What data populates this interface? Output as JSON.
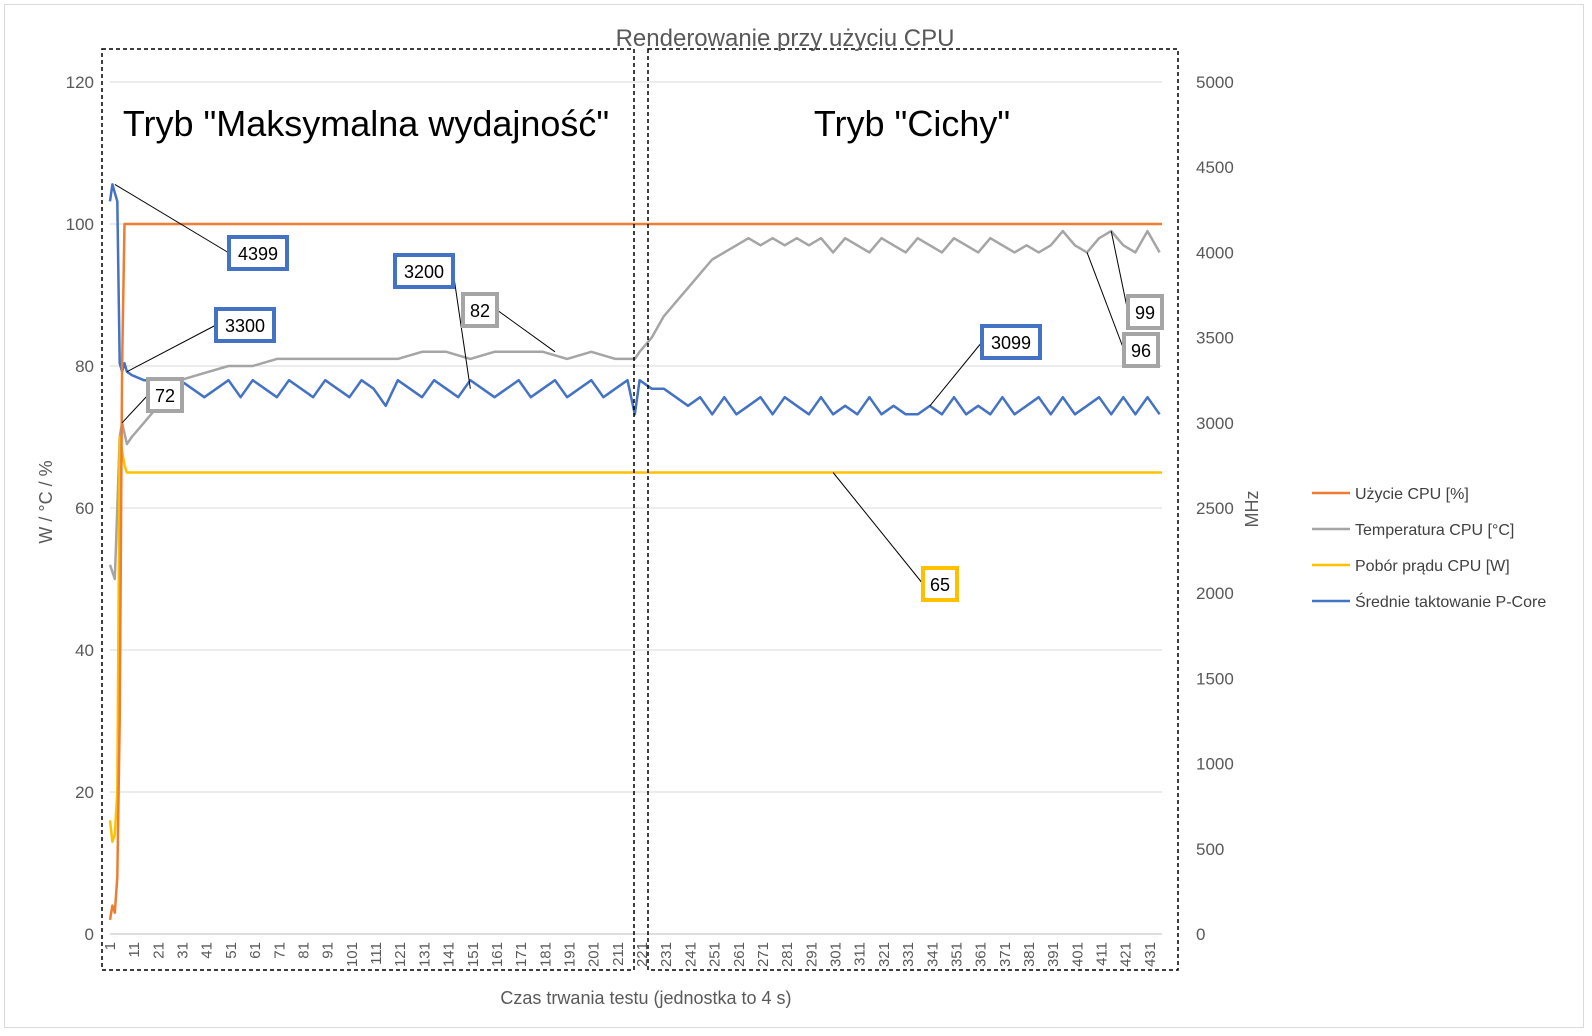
{
  "chart_data": {
    "type": "line",
    "title": "Renderowanie przy użyciu CPU",
    "xlabel": "Czas trwania testu (jednostka to 4 s)",
    "ylabel": "W / °C / %",
    "ylabel_right": "MHz",
    "ylim": [
      0,
      120
    ],
    "ylim_right": [
      0,
      5000
    ],
    "yticks": [
      0,
      20,
      40,
      60,
      80,
      100,
      120
    ],
    "yticks_right": [
      0,
      500,
      1000,
      1500,
      2000,
      2500,
      3000,
      3500,
      4000,
      4500,
      5000
    ],
    "xlim": [
      1,
      436
    ],
    "xticks": [
      1,
      11,
      21,
      31,
      41,
      51,
      61,
      71,
      81,
      91,
      101,
      111,
      121,
      131,
      141,
      151,
      161,
      171,
      181,
      191,
      201,
      211,
      221,
      231,
      241,
      251,
      261,
      271,
      281,
      291,
      301,
      311,
      321,
      331,
      341,
      351,
      361,
      371,
      381,
      391,
      401,
      411,
      421,
      431
    ],
    "grid": true,
    "legend_position": "right",
    "regions": [
      {
        "label": "Tryb \"Maksymalna wydajność\"",
        "x_start": 1,
        "x_end": 218
      },
      {
        "label": "Tryb \"Cichy\"",
        "x_start": 219,
        "x_end": 436
      }
    ],
    "series": [
      {
        "name": "Użycie CPU [%]",
        "color": "#ED7D31",
        "axis": "left",
        "points": [
          [
            1,
            2
          ],
          [
            2,
            4
          ],
          [
            3,
            3
          ],
          [
            4,
            8
          ],
          [
            5,
            30
          ],
          [
            6,
            80
          ],
          [
            7,
            100
          ],
          [
            436,
            100
          ]
        ]
      },
      {
        "name": "Temperatura CPU [°C]",
        "color": "#A5A5A5",
        "axis": "left",
        "points": [
          [
            1,
            52
          ],
          [
            2,
            51
          ],
          [
            3,
            50
          ],
          [
            4,
            60
          ],
          [
            5,
            70
          ],
          [
            6,
            72
          ],
          [
            8,
            69
          ],
          [
            10,
            70
          ],
          [
            15,
            72
          ],
          [
            20,
            74
          ],
          [
            25,
            76
          ],
          [
            30,
            78
          ],
          [
            40,
            79
          ],
          [
            50,
            80
          ],
          [
            60,
            80
          ],
          [
            70,
            81
          ],
          [
            80,
            81
          ],
          [
            90,
            81
          ],
          [
            100,
            81
          ],
          [
            110,
            81
          ],
          [
            120,
            81
          ],
          [
            130,
            82
          ],
          [
            140,
            82
          ],
          [
            150,
            81
          ],
          [
            160,
            82
          ],
          [
            170,
            82
          ],
          [
            180,
            82
          ],
          [
            190,
            81
          ],
          [
            200,
            82
          ],
          [
            210,
            81
          ],
          [
            218,
            81
          ],
          [
            220,
            82
          ],
          [
            225,
            84
          ],
          [
            230,
            87
          ],
          [
            235,
            89
          ],
          [
            240,
            91
          ],
          [
            245,
            93
          ],
          [
            250,
            95
          ],
          [
            255,
            96
          ],
          [
            260,
            97
          ],
          [
            265,
            98
          ],
          [
            270,
            97
          ],
          [
            275,
            98
          ],
          [
            280,
            97
          ],
          [
            285,
            98
          ],
          [
            290,
            97
          ],
          [
            295,
            98
          ],
          [
            300,
            96
          ],
          [
            305,
            98
          ],
          [
            310,
            97
          ],
          [
            315,
            96
          ],
          [
            320,
            98
          ],
          [
            325,
            97
          ],
          [
            330,
            96
          ],
          [
            335,
            98
          ],
          [
            340,
            97
          ],
          [
            345,
            96
          ],
          [
            350,
            98
          ],
          [
            355,
            97
          ],
          [
            360,
            96
          ],
          [
            365,
            98
          ],
          [
            370,
            97
          ],
          [
            375,
            96
          ],
          [
            380,
            97
          ],
          [
            385,
            96
          ],
          [
            390,
            97
          ],
          [
            395,
            99
          ],
          [
            400,
            97
          ],
          [
            405,
            96
          ],
          [
            410,
            98
          ],
          [
            415,
            99
          ],
          [
            420,
            97
          ],
          [
            425,
            96
          ],
          [
            430,
            99
          ],
          [
            435,
            96
          ]
        ]
      },
      {
        "name": "Pobór prądu CPU [W]",
        "color": "#FFC000",
        "axis": "left",
        "points": [
          [
            1,
            16
          ],
          [
            2,
            13
          ],
          [
            3,
            14
          ],
          [
            4,
            20
          ],
          [
            5,
            70
          ],
          [
            6,
            68
          ],
          [
            7,
            66
          ],
          [
            8,
            65
          ],
          [
            436,
            65
          ]
        ]
      },
      {
        "name": "Średnie taktowanie P-Core",
        "color": "#4472C4",
        "axis": "right",
        "points": [
          [
            1,
            4300
          ],
          [
            2,
            4399
          ],
          [
            3,
            4350
          ],
          [
            4,
            4300
          ],
          [
            5,
            3350
          ],
          [
            6,
            3300
          ],
          [
            7,
            3350
          ],
          [
            8,
            3300
          ],
          [
            10,
            3280
          ],
          [
            15,
            3250
          ],
          [
            20,
            3250
          ],
          [
            25,
            3150
          ],
          [
            30,
            3250
          ],
          [
            35,
            3200
          ],
          [
            40,
            3150
          ],
          [
            45,
            3200
          ],
          [
            50,
            3250
          ],
          [
            55,
            3150
          ],
          [
            60,
            3250
          ],
          [
            65,
            3200
          ],
          [
            70,
            3150
          ],
          [
            75,
            3250
          ],
          [
            80,
            3200
          ],
          [
            85,
            3150
          ],
          [
            90,
            3250
          ],
          [
            95,
            3200
          ],
          [
            100,
            3150
          ],
          [
            105,
            3250
          ],
          [
            110,
            3200
          ],
          [
            115,
            3100
          ],
          [
            120,
            3250
          ],
          [
            125,
            3200
          ],
          [
            130,
            3150
          ],
          [
            135,
            3250
          ],
          [
            140,
            3200
          ],
          [
            145,
            3150
          ],
          [
            150,
            3250
          ],
          [
            155,
            3200
          ],
          [
            160,
            3150
          ],
          [
            165,
            3200
          ],
          [
            170,
            3250
          ],
          [
            175,
            3150
          ],
          [
            180,
            3200
          ],
          [
            185,
            3250
          ],
          [
            190,
            3150
          ],
          [
            195,
            3200
          ],
          [
            200,
            3250
          ],
          [
            205,
            3150
          ],
          [
            210,
            3200
          ],
          [
            215,
            3250
          ],
          [
            218,
            3050
          ],
          [
            220,
            3250
          ],
          [
            225,
            3200
          ],
          [
            230,
            3200
          ],
          [
            235,
            3150
          ],
          [
            240,
            3100
          ],
          [
            245,
            3150
          ],
          [
            250,
            3050
          ],
          [
            255,
            3150
          ],
          [
            260,
            3050
          ],
          [
            265,
            3100
          ],
          [
            270,
            3150
          ],
          [
            275,
            3050
          ],
          [
            280,
            3150
          ],
          [
            285,
            3100
          ],
          [
            290,
            3050
          ],
          [
            295,
            3150
          ],
          [
            300,
            3050
          ],
          [
            305,
            3100
          ],
          [
            310,
            3050
          ],
          [
            315,
            3150
          ],
          [
            320,
            3050
          ],
          [
            325,
            3100
          ],
          [
            330,
            3050
          ],
          [
            335,
            3050
          ],
          [
            340,
            3099
          ],
          [
            345,
            3050
          ],
          [
            350,
            3150
          ],
          [
            355,
            3050
          ],
          [
            360,
            3100
          ],
          [
            365,
            3050
          ],
          [
            370,
            3150
          ],
          [
            375,
            3050
          ],
          [
            380,
            3100
          ],
          [
            385,
            3150
          ],
          [
            390,
            3050
          ],
          [
            395,
            3150
          ],
          [
            400,
            3050
          ],
          [
            405,
            3100
          ],
          [
            410,
            3150
          ],
          [
            415,
            3050
          ],
          [
            420,
            3150
          ],
          [
            425,
            3050
          ],
          [
            430,
            3150
          ],
          [
            435,
            3050
          ]
        ]
      }
    ],
    "annotations": [
      {
        "text": "4399",
        "series": "Średnie taktowanie P-Core",
        "x": 3,
        "y": 4399
      },
      {
        "text": "3300",
        "series": "Średnie taktowanie P-Core",
        "x": 8,
        "y": 3300
      },
      {
        "text": "72",
        "series": "Temperatura CPU [°C]",
        "x": 6,
        "y": 72
      },
      {
        "text": "3200",
        "series": "Średnie taktowanie P-Core",
        "x": 150,
        "y": 3200
      },
      {
        "text": "82",
        "series": "Temperatura CPU [°C]",
        "x": 185,
        "y": 82
      },
      {
        "text": "65",
        "series": "Pobór prądu CPU [W]",
        "x": 300,
        "y": 65
      },
      {
        "text": "3099",
        "series": "Średnie taktowanie P-Core",
        "x": 340,
        "y": 3099
      },
      {
        "text": "99",
        "series": "Temperatura CPU [°C]",
        "x": 415,
        "y": 99
      },
      {
        "text": "96",
        "series": "Temperatura CPU [°C]",
        "x": 405,
        "y": 96
      }
    ]
  }
}
